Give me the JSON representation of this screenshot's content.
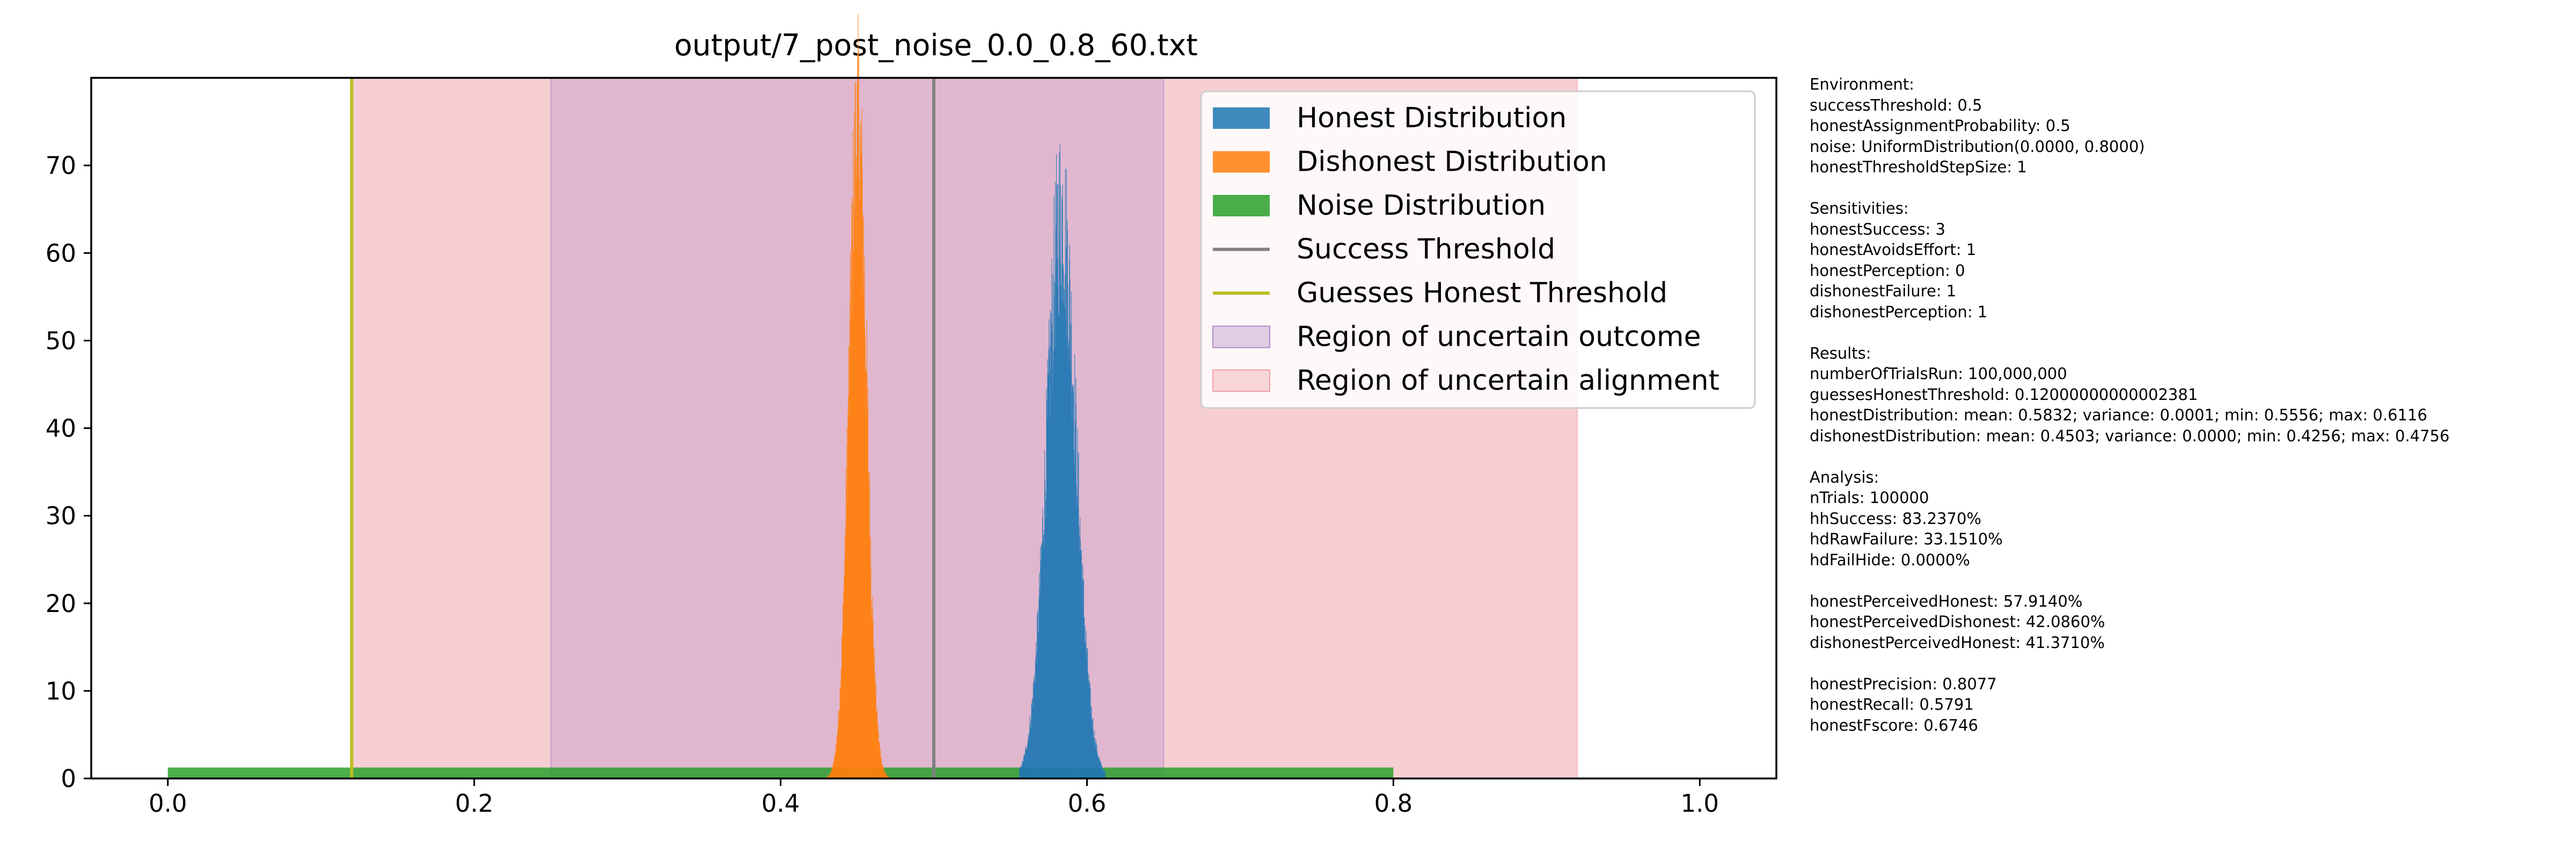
{
  "chart_data": {
    "type": "histogram",
    "title": "output/7_post_noise_0.0_0.8_60.txt",
    "xlabel": "",
    "ylabel": "",
    "xlim": [
      -0.05,
      1.05
    ],
    "ylim": [
      0,
      80
    ],
    "x_ticks": [
      0.0,
      0.2,
      0.4,
      0.6,
      0.8,
      1.0
    ],
    "x_tick_labels": [
      "0.0",
      "0.2",
      "0.4",
      "0.6",
      "0.8",
      "1.0"
    ],
    "y_ticks": [
      0,
      10,
      20,
      30,
      40,
      50,
      60,
      70
    ],
    "y_tick_labels": [
      "0",
      "10",
      "20",
      "30",
      "40",
      "50",
      "60",
      "70"
    ],
    "grid": false,
    "legend_position": "top-right",
    "regions": [
      {
        "name": "Region of uncertain alignment",
        "x0": 0.12,
        "x1": 0.92,
        "color": "#f0a0a8",
        "alpha": 0.5
      },
      {
        "name": "Region of uncertain outcome",
        "x0": 0.25,
        "x1": 0.65,
        "color": "#b48ac8",
        "alpha": 0.35
      }
    ],
    "lines": [
      {
        "name": "Success Threshold",
        "x": 0.5,
        "color": "#808080"
      },
      {
        "name": "Guesses Honest Threshold",
        "x": 0.12,
        "color": "#bcbd22"
      }
    ],
    "series": [
      {
        "name": "Honest Distribution",
        "color": "#1f77b4",
        "mean": 0.5832,
        "std": 0.0095,
        "min": 0.5556,
        "max": 0.6116,
        "peak": 66
      },
      {
        "name": "Dishonest Distribution",
        "color": "#ff7f0e",
        "mean": 0.4503,
        "std": 0.0058,
        "min": 0.4256,
        "max": 0.4756,
        "peak": 76
      },
      {
        "name": "Noise Distribution",
        "color": "#2ca02c",
        "x_start": 0.0,
        "x_end": 0.8,
        "density": 1.25
      }
    ],
    "legend": [
      {
        "label": "Honest Distribution",
        "kind": "patch",
        "color": "#1f77b4"
      },
      {
        "label": "Dishonest Distribution",
        "kind": "patch",
        "color": "#ff7f0e"
      },
      {
        "label": "Noise Distribution",
        "kind": "patch",
        "color": "#2ca02c"
      },
      {
        "label": "Success Threshold",
        "kind": "line",
        "color": "#808080"
      },
      {
        "label": "Guesses Honest Threshold",
        "kind": "line",
        "color": "#bcbd22"
      },
      {
        "label": "Region of uncertain outcome",
        "kind": "region",
        "color": "#b48ac8"
      },
      {
        "label": "Region of uncertain alignment",
        "kind": "region",
        "color": "#f0a0a8"
      }
    ]
  },
  "info_blocks": [
    [
      "Environment:",
      "successThreshold: 0.5",
      "honestAssignmentProbability: 0.5",
      "noise: UniformDistribution(0.0000, 0.8000)",
      "honestThresholdStepSize: 1"
    ],
    [
      "Sensitivities:",
      "honestSuccess: 3",
      "honestAvoidsEffort: 1",
      "honestPerception: 0",
      "dishonestFailure: 1",
      "dishonestPerception: 1"
    ],
    [
      "Results:",
      "numberOfTrialsRun: 100,000,000",
      "guessesHonestThreshold: 0.12000000000002381",
      "honestDistribution: mean: 0.5832; variance: 0.0001; min: 0.5556; max: 0.6116",
      "dishonestDistribution: mean: 0.4503; variance: 0.0000; min: 0.4256; max: 0.4756"
    ],
    [
      "Analysis:",
      "nTrials: 100000",
      "hhSuccess: 83.2370%",
      "hdRawFailure: 33.1510%",
      "hdFailHide: 0.0000%"
    ],
    [
      "honestPerceivedHonest: 57.9140%",
      "honestPerceivedDishonest: 42.0860%",
      "dishonestPerceivedHonest: 41.3710%"
    ],
    [
      "honestPrecision: 0.8077",
      "honestRecall: 0.5791",
      "honestFscore: 0.6746"
    ]
  ]
}
